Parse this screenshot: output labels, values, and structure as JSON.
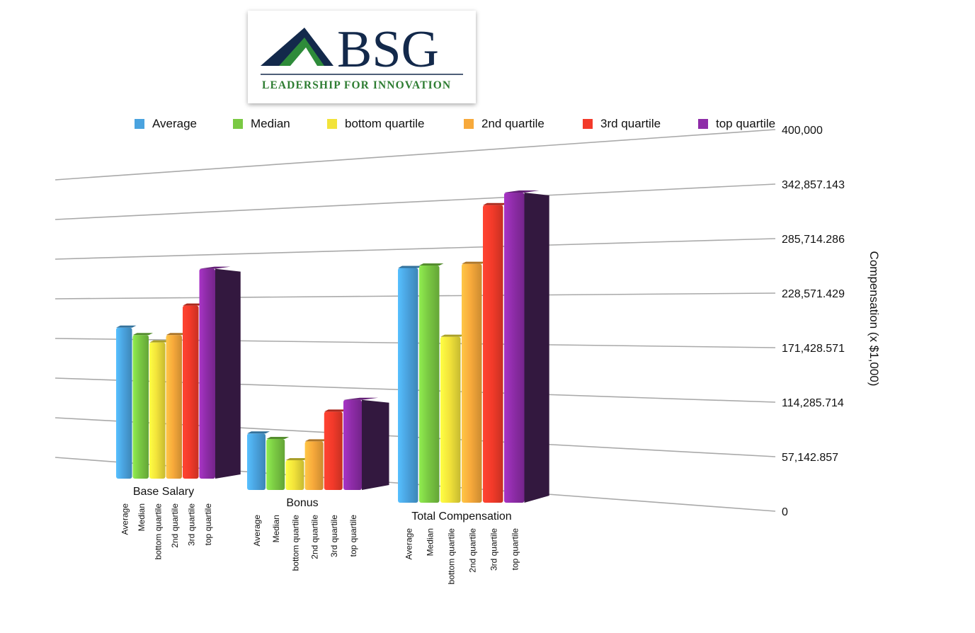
{
  "logo": {
    "name": "BSG",
    "tagline": "LEADERSHIP FOR INNOVATION",
    "colors": {
      "navy": "#13294b",
      "green": "#2e8b3a",
      "tagline": "#2e7d32"
    }
  },
  "chart_data": {
    "type": "bar",
    "title": "",
    "ylabel": "Compensation (x $1,000)",
    "xlabel": "",
    "ylim": [
      0,
      400000
    ],
    "ytick_labels": [
      "0",
      "57,142.857",
      "114,285.714",
      "171,428.571",
      "228,571.429",
      "285,714.286",
      "342,857.143",
      "400,000"
    ],
    "ytick_values": [
      0,
      57142.857,
      114285.714,
      171428.571,
      228571.429,
      285714.286,
      342857.143,
      400000
    ],
    "categories": [
      "Base Salary",
      "Bonus",
      "Total Compensation"
    ],
    "series": [
      {
        "name": "Average",
        "color": "#4aa3df",
        "values": [
          205000,
          72000,
          280000
        ]
      },
      {
        "name": "Median",
        "color": "#7ac943",
        "values": [
          195000,
          65000,
          283000
        ]
      },
      {
        "name": "bottom quartile",
        "color": "#f2e33a",
        "values": [
          185000,
          38000,
          198000
        ]
      },
      {
        "name": "2nd quartile",
        "color": "#f7a93b",
        "values": [
          195000,
          62000,
          285000
        ]
      },
      {
        "name": "3rd quartile",
        "color": "#f33a2a",
        "values": [
          235000,
          100000,
          355000
        ]
      },
      {
        "name": "top quartile",
        "color": "#8e2ca8",
        "values": [
          285000,
          115000,
          370000
        ]
      }
    ],
    "grid": true,
    "legend": "top",
    "three_d": true
  }
}
